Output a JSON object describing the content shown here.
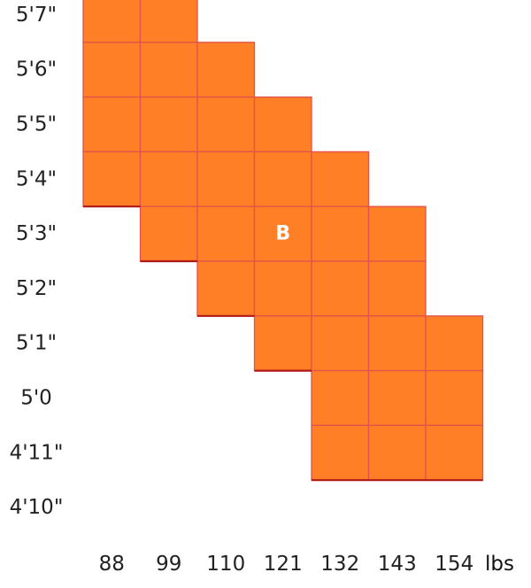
{
  "chart_data": {
    "type": "heatmap",
    "x_unit": "lbs",
    "x_categories": [
      "88",
      "99",
      "110",
      "121",
      "132",
      "143",
      "154"
    ],
    "y_categories": [
      "4'10\"",
      "4'11\"",
      "5'0",
      "5'1\"",
      "5'2\"",
      "5'3\"",
      "5'4\"",
      "5'5\"",
      "5'6\"",
      "5'7\""
    ],
    "filled_cells": [
      {
        "x": "88",
        "y": "5'7\""
      },
      {
        "x": "99",
        "y": "5'7\""
      },
      {
        "x": "88",
        "y": "5'6\""
      },
      {
        "x": "99",
        "y": "5'6\""
      },
      {
        "x": "110",
        "y": "5'6\""
      },
      {
        "x": "88",
        "y": "5'5\""
      },
      {
        "x": "99",
        "y": "5'5\""
      },
      {
        "x": "110",
        "y": "5'5\""
      },
      {
        "x": "121",
        "y": "5'5\""
      },
      {
        "x": "88",
        "y": "5'4\""
      },
      {
        "x": "99",
        "y": "5'4\""
      },
      {
        "x": "110",
        "y": "5'4\""
      },
      {
        "x": "121",
        "y": "5'4\""
      },
      {
        "x": "132",
        "y": "5'4\""
      },
      {
        "x": "99",
        "y": "5'3\""
      },
      {
        "x": "110",
        "y": "5'3\""
      },
      {
        "x": "121",
        "y": "5'3\""
      },
      {
        "x": "132",
        "y": "5'3\""
      },
      {
        "x": "143",
        "y": "5'3\""
      },
      {
        "x": "110",
        "y": "5'2\""
      },
      {
        "x": "121",
        "y": "5'2\""
      },
      {
        "x": "132",
        "y": "5'2\""
      },
      {
        "x": "143",
        "y": "5'2\""
      },
      {
        "x": "121",
        "y": "5'1\""
      },
      {
        "x": "132",
        "y": "5'1\""
      },
      {
        "x": "143",
        "y": "5'1\""
      },
      {
        "x": "154",
        "y": "5'1\""
      },
      {
        "x": "132",
        "y": "5'0"
      },
      {
        "x": "143",
        "y": "5'0"
      },
      {
        "x": "154",
        "y": "5'0"
      },
      {
        "x": "132",
        "y": "4'11\""
      },
      {
        "x": "143",
        "y": "4'11\""
      },
      {
        "x": "154",
        "y": "4'11\""
      }
    ],
    "marker": {
      "label": "B",
      "x": "121",
      "y": "5'3\""
    },
    "colors": {
      "cell_fill": "#FF7F27",
      "cell_grid": "#E0524A",
      "step_edge": "#B01818"
    },
    "grid": true
  }
}
